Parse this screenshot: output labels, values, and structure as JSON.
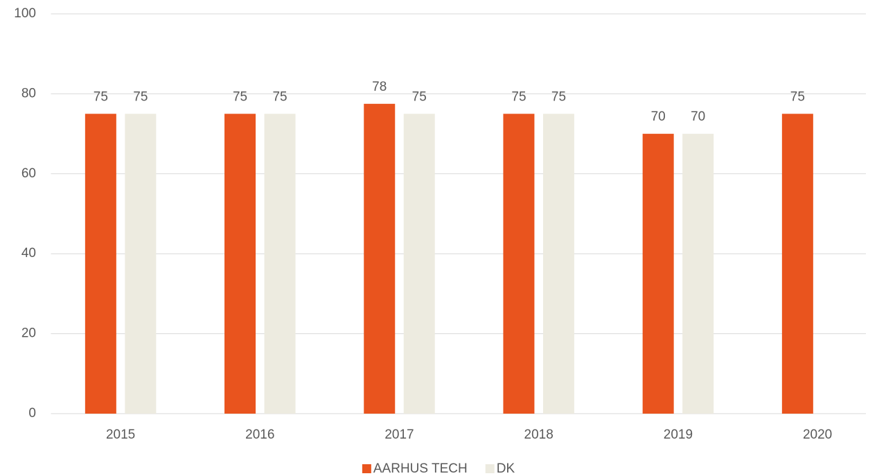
{
  "chart_data": {
    "type": "bar",
    "categories": [
      "2015",
      "2016",
      "2017",
      "2018",
      "2019",
      "2020"
    ],
    "series": [
      {
        "name": "AARHUS TECH",
        "color": "#e9541e",
        "values": [
          75,
          75,
          77.5,
          75,
          70,
          75
        ],
        "value_labels": [
          "75",
          "75",
          "78",
          "75",
          "70",
          "75"
        ]
      },
      {
        "name": "DK",
        "color": "#edebe0",
        "values": [
          75,
          75,
          75,
          75,
          70,
          null
        ]
      }
    ],
    "ylim": [
      0,
      100
    ],
    "yticks": [
      0,
      20,
      40,
      60,
      80,
      100
    ],
    "grid": true,
    "legend": "bottom"
  }
}
